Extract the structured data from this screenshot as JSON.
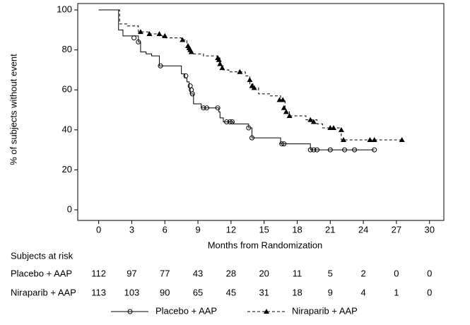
{
  "chart_data": {
    "type": "km",
    "xlabel": "Months from Randomization",
    "ylabel": "% of subjects without event",
    "xlim": [
      -1.9,
      31.3
    ],
    "ylim": [
      -5.3,
      103.2
    ],
    "xticks": [
      0,
      3,
      6,
      9,
      12,
      15,
      18,
      21,
      24,
      27,
      30
    ],
    "yticks": [
      0,
      20,
      40,
      60,
      80,
      100
    ],
    "series": [
      {
        "name": "Placebo + AAP",
        "color": "#000000",
        "dash": "solid",
        "marker": "circle",
        "x": [
          0,
          1.8,
          2.2,
          3.6,
          3.8,
          4.3,
          4.8,
          5.5,
          7.5,
          7.8,
          8.0,
          8.2,
          8.3,
          8.6,
          9.3,
          10.9,
          11.0,
          11.3,
          12.2,
          13.6,
          13.9,
          16.5,
          19.2,
          25
        ],
        "values": [
          100,
          90,
          87,
          84,
          79,
          78,
          77,
          72,
          68,
          66,
          64,
          61,
          58,
          53,
          51,
          49,
          46,
          44,
          43,
          41,
          36,
          33,
          30,
          30
        ],
        "censor_x": [
          3.2,
          3.6,
          5.6,
          7.9,
          8.3,
          8.4,
          8.5,
          9.5,
          9.8,
          10.8,
          11.6,
          11.9,
          12.1,
          13.6,
          13.9,
          16.6,
          16.8,
          19.2,
          19.5,
          19.8,
          21,
          22.3,
          23.2,
          25
        ],
        "censor_y": [
          86,
          84,
          72,
          67,
          62,
          60,
          58,
          51,
          51,
          51,
          44,
          44,
          44,
          41,
          36,
          33,
          33,
          30,
          30,
          30,
          30,
          30,
          30,
          30
        ]
      },
      {
        "name": "Niraparib + AAP",
        "color": "#000000",
        "dash": "dashed",
        "marker": "triangle",
        "x": [
          0,
          1.9,
          2.6,
          3.6,
          4.5,
          5.5,
          5.8,
          7.5,
          8.0,
          8.3,
          8.5,
          9.5,
          10.8,
          11.0,
          11.3,
          11.8,
          13.3,
          13.7,
          14.0,
          14.5,
          15.5,
          16.5,
          16.9,
          17.0,
          17.3,
          18.8,
          19.8,
          20.3,
          22.0,
          27.5
        ],
        "values": [
          100,
          93,
          92,
          89,
          88,
          87,
          86,
          85,
          82,
          79,
          78,
          77,
          76,
          72,
          70,
          69,
          67,
          63,
          61,
          58,
          57,
          55,
          51,
          49,
          47,
          45,
          43,
          41,
          35,
          35
        ],
        "censor_x": [
          3.8,
          4.6,
          5.5,
          6.0,
          7.6,
          8.1,
          8.2,
          8.3,
          8.4,
          10.8,
          10.9,
          11.0,
          11.2,
          12.8,
          13.7,
          13.9,
          14.1,
          16.4,
          16.7,
          16.8,
          17.0,
          17.3,
          19.2,
          19.5,
          21.0,
          21.3,
          22.0,
          22.2,
          24.6,
          25.0,
          27.5
        ],
        "censor_y": [
          89,
          88,
          88,
          87,
          85,
          82,
          81,
          80,
          79,
          76,
          75,
          73,
          71,
          69,
          65,
          62,
          61,
          55,
          55,
          51,
          49,
          47,
          45,
          44,
          41,
          41,
          40,
          35,
          35,
          35,
          35
        ]
      }
    ],
    "risk_table": {
      "title": "Subjects at risk",
      "rows": [
        {
          "name": "Placebo + AAP",
          "values": [
            "112",
            "97",
            "77",
            "43",
            "28",
            "20",
            "11",
            "5",
            "2",
            "0",
            "0"
          ]
        },
        {
          "name": "Niraparib + AAP",
          "values": [
            "113",
            "103",
            "90",
            "65",
            "45",
            "31",
            "18",
            "9",
            "4",
            "1",
            "0"
          ]
        }
      ]
    }
  }
}
